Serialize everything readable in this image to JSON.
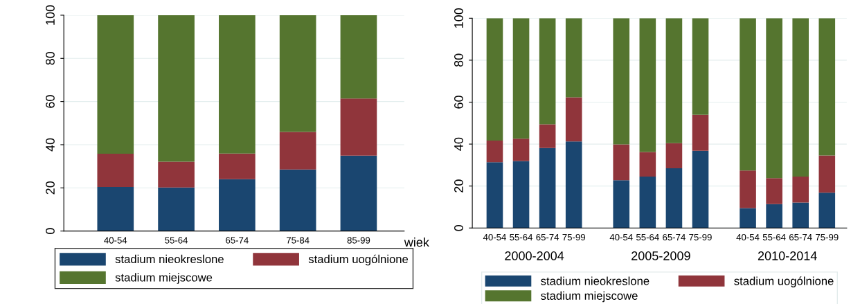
{
  "chart_data": [
    {
      "type": "bar",
      "stacked": true,
      "xlabel": "wiek",
      "categories": [
        "40-54",
        "55-64",
        "65-74",
        "75-84",
        "85-99"
      ],
      "ylim": [
        0,
        100
      ],
      "yticks": [
        0,
        20,
        40,
        60,
        80,
        100
      ],
      "grid": "y",
      "legend": "bottom",
      "series": [
        {
          "name": "stadium nieokreslone",
          "color": "#1a4670",
          "values": [
            20.4,
            20.2,
            24.0,
            28.5,
            34.9
          ]
        },
        {
          "name": "stadium uogólnione",
          "color": "#90353b",
          "values": [
            15.4,
            11.9,
            11.9,
            17.4,
            26.5
          ]
        },
        {
          "name": "stadium miejscowe",
          "color": "#55752f",
          "values": [
            64.2,
            67.9,
            64.1,
            54.1,
            38.6
          ]
        }
      ]
    },
    {
      "type": "bar",
      "stacked": true,
      "categories": [
        "40-54",
        "55-64",
        "65-74",
        "75-99",
        "40-54",
        "55-64",
        "65-74",
        "75-99",
        "40-54",
        "55-64",
        "65-74",
        "75-99"
      ],
      "annotations": [
        "2000-2004",
        "2005-2009",
        "2010-2014"
      ],
      "ylim": [
        0,
        100
      ],
      "yticks": [
        0,
        20,
        40,
        60,
        80,
        100
      ],
      "grid": "y",
      "legend": "bottom",
      "series": [
        {
          "name": "stadium nieokreslone",
          "color": "#1a4670",
          "values": [
            31.4,
            31.9,
            38.1,
            41.3,
            22.8,
            24.5,
            28.5,
            36.8,
            9.5,
            11.4,
            12.1,
            16.8
          ]
        },
        {
          "name": "stadium uogólnione",
          "color": "#90353b",
          "values": [
            10.3,
            10.7,
            11.3,
            21.0,
            17.1,
            11.7,
            11.9,
            17.2,
            17.9,
            12.4,
            12.4,
            17.8
          ]
        },
        {
          "name": "stadium miejscowe",
          "color": "#55752f",
          "values": [
            58.3,
            57.4,
            50.6,
            37.7,
            60.1,
            63.8,
            59.6,
            46.0,
            72.6,
            76.2,
            75.5,
            65.4
          ]
        }
      ]
    }
  ]
}
